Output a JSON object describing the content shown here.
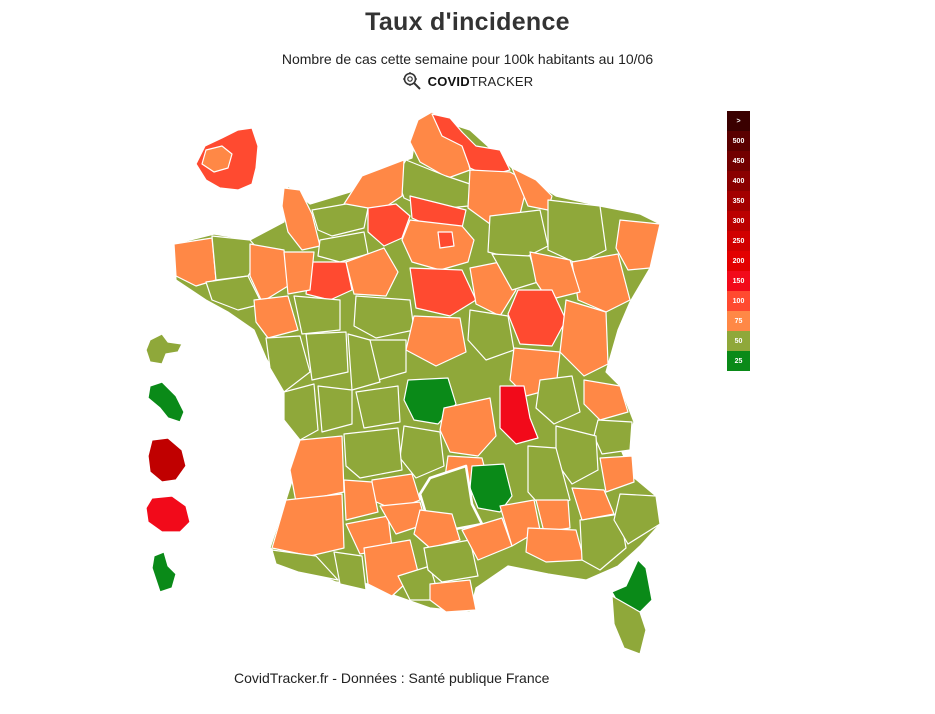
{
  "header": {
    "title": "Taux d'incidence",
    "subtitle": "Nombre de cas cette semaine pour 100k habitants au 10/06",
    "brand_bold": "COVID",
    "brand_light": "TRACKER"
  },
  "legend": {
    "items": [
      {
        "label": ">",
        "color": "#3a0000"
      },
      {
        "label": "500",
        "color": "#5a0000"
      },
      {
        "label": "450",
        "color": "#720000"
      },
      {
        "label": "400",
        "color": "#8a0000"
      },
      {
        "label": "350",
        "color": "#a30000"
      },
      {
        "label": "300",
        "color": "#bb0000"
      },
      {
        "label": "250",
        "color": "#d10000"
      },
      {
        "label": "200",
        "color": "#e30000"
      },
      {
        "label": "150",
        "color": "#f20a1a"
      },
      {
        "label": "100",
        "color": "#ff4a30"
      },
      {
        "label": "75",
        "color": "#ff8846"
      },
      {
        "label": "50",
        "color": "#8fa83a"
      },
      {
        "label": "25",
        "color": "#0a8a18"
      }
    ]
  },
  "colors": {
    "green": "#8fa83a",
    "orange": "#ff8846",
    "red_orange": "#ff4a30",
    "red": "#f20a1a",
    "dark_red": "#c00000",
    "dark_green": "#0a8a18"
  },
  "footer": "CovidTracker.fr - Données : Santé publique France"
}
